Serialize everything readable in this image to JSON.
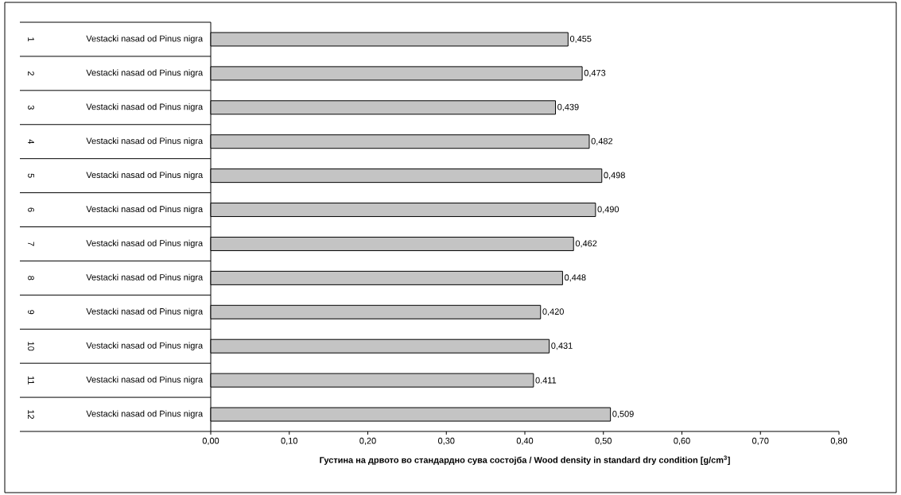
{
  "chart_data": {
    "type": "bar",
    "orientation": "horizontal",
    "xlabel": "Густина на дрвото во стандардно сува состојба / Wood density in standard dry condition [g/cm$^{3}$]",
    "categories": [
      "Vestacki nasad od Pinus nigra",
      "Vestacki nasad od Pinus nigra",
      "Vestacki nasad od Pinus nigra",
      "Vestacki nasad od Pinus nigra",
      "Vestacki nasad od Pinus nigra",
      "Vestacki nasad od Pinus nigra",
      "Vestacki nasad od Pinus nigra",
      "Vestacki nasad od Pinus nigra",
      "Vestacki nasad od Pinus nigra",
      "Vestacki nasad od Pinus nigra",
      "Vestacki nasad od Pinus nigra",
      "Vestacki nasad od Pinus nigra"
    ],
    "annotations": [
      "1",
      "2",
      "3",
      "4",
      "5",
      "6",
      "7",
      "8",
      "9",
      "10",
      "11",
      "12"
    ],
    "values": [
      0.455,
      0.473,
      0.439,
      0.482,
      0.498,
      0.49,
      0.462,
      0.448,
      0.42,
      0.431,
      0.411,
      0.509
    ],
    "value_labels": [
      "0,455",
      "0,473",
      "0,439",
      "0,482",
      "0,498",
      "0,490",
      "0,462",
      "0,448",
      "0,420",
      "0,431",
      "0.411",
      "0,509"
    ],
    "color": "#c4c4c4",
    "xlim": [
      0,
      0.8
    ],
    "xticks": [
      {
        "value": 0,
        "label": "0,00"
      },
      {
        "value": 0.1,
        "label": "0,10"
      },
      {
        "value": 0.2,
        "label": "0,20"
      },
      {
        "value": 0.3,
        "label": "0,30"
      },
      {
        "value": 0.4,
        "label": "0,40"
      },
      {
        "value": 0.5,
        "label": "0,50"
      },
      {
        "value": 0.6,
        "label": "0,60"
      },
      {
        "value": 0.7,
        "label": "0,70"
      },
      {
        "value": 0.8,
        "label": "0,80"
      }
    ]
  }
}
